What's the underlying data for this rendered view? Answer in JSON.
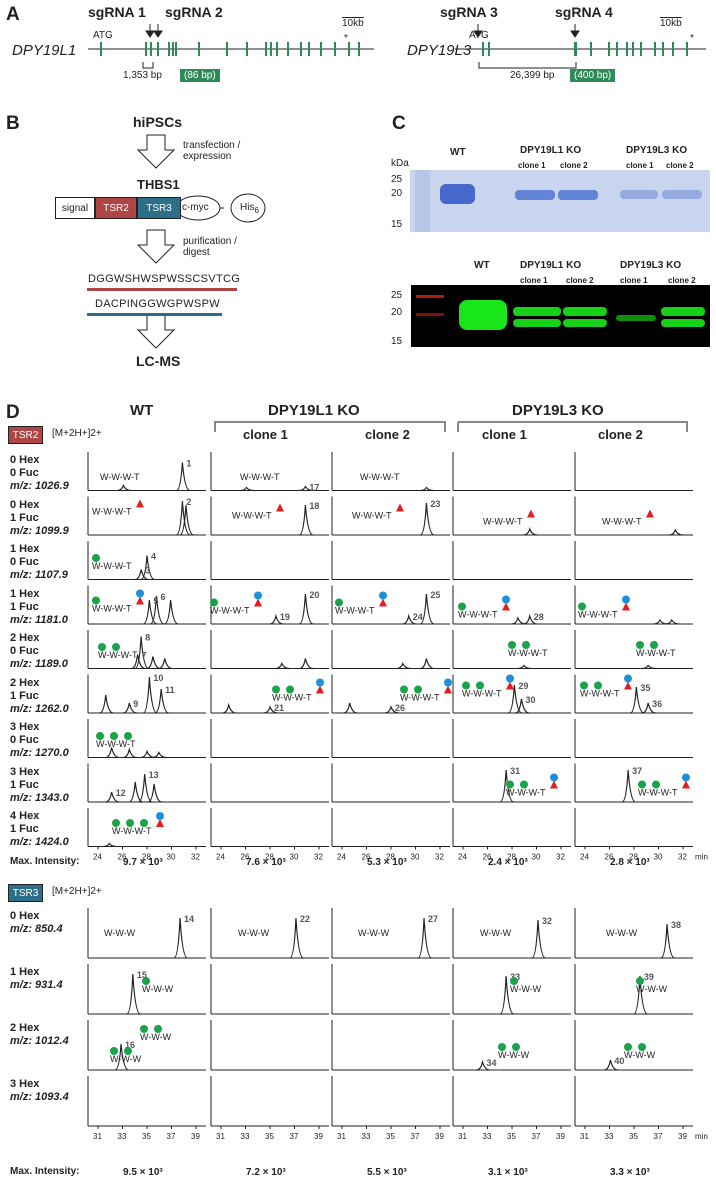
{
  "panelA": {
    "label": "A",
    "left": {
      "gene": "DPY19L1",
      "sg1": "sgRNA 1",
      "sg2": "sgRNA 2",
      "atg": "ATG",
      "scale": "10kb",
      "star": "*",
      "dist": "1,353 bp",
      "box": "(86 bp)"
    },
    "right": {
      "gene": "DPY19L3",
      "sg3": "sgRNA 3",
      "sg4": "sgRNA 4",
      "atg": "ATG",
      "scale": "10kb",
      "star": "*",
      "dist": "26,399 bp",
      "box": "(400 bp)"
    }
  },
  "panelB": {
    "label": "B",
    "hipsc": "hiPSCs",
    "step1": "transfection /\nexpression",
    "thbs1": "THBS1",
    "signal": "signal",
    "tsr2": "TSR2",
    "tsr3": "TSR3",
    "cmyc": "c-myc",
    "his": "His",
    "his_sub": "6",
    "step2": "purification /\ndigest",
    "pep1": "DGGWSHWSPWSSCSVTCG",
    "pep2": "DACPINGGWGPWSPW",
    "lcms": "LC-MS"
  },
  "panelC": {
    "label": "C",
    "kda": "kDa",
    "wt": "WT",
    "l1": "DPY19L1 KO",
    "l3": "DPY19L3 KO",
    "clone1": "clone 1",
    "clone2": "clone 2",
    "markers": [
      "25",
      "20",
      "15"
    ]
  },
  "panelD": {
    "label": "D",
    "headers": {
      "wt": "WT",
      "l1": "DPY19L1 KO",
      "l3": "DPY19L3 KO",
      "clone1": "clone 1",
      "clone2": "clone 2"
    },
    "tsr2": {
      "tag": "TSR2",
      "ion": "[M+2H+]2+",
      "rows": [
        {
          "hex": "0 Hex",
          "fuc": "0 Fuc",
          "mz": "m/z: 1026.9"
        },
        {
          "hex": "0 Hex",
          "fuc": "1 Fuc",
          "mz": "m/z: 1099.9"
        },
        {
          "hex": "1 Hex",
          "fuc": "0 Fuc",
          "mz": "m/z: 1107.9"
        },
        {
          "hex": "1 Hex",
          "fuc": "1 Fuc",
          "mz": "m/z: 1181.0"
        },
        {
          "hex": "2 Hex",
          "fuc": "0 Fuc",
          "mz": "m/z: 1189.0"
        },
        {
          "hex": "2 Hex",
          "fuc": "1 Fuc",
          "mz": "m/z: 1262.0"
        },
        {
          "hex": "3 Hex",
          "fuc": "0 Fuc",
          "mz": "m/z: 1270.0"
        },
        {
          "hex": "3 Hex",
          "fuc": "1 Fuc",
          "mz": "m/z: 1343.0"
        },
        {
          "hex": "4 Hex",
          "fuc": "1 Fuc",
          "mz": "m/z: 1424.0"
        }
      ],
      "ticks": [
        "24",
        "26",
        "28",
        "30",
        "32"
      ],
      "unit": "min",
      "max_label": "Max. Intensity:",
      "max": [
        "9.7 × 10³",
        "7.6 × 10³",
        "5.3 × 10³",
        "2.4 × 10³",
        "2.8 × 10³"
      ]
    },
    "tsr3": {
      "tag": "TSR3",
      "ion": "[M+2H+]2+",
      "rows": [
        {
          "hex": "0 Hex",
          "mz": "m/z: 850.4"
        },
        {
          "hex": "1 Hex",
          "mz": "m/z: 931.4"
        },
        {
          "hex": "2 Hex",
          "mz": "m/z: 1012.4"
        },
        {
          "hex": "3 Hex",
          "mz": "m/z: 1093.4"
        }
      ],
      "ticks": [
        "31",
        "33",
        "35",
        "37",
        "39"
      ],
      "unit": "min",
      "max_label": "Max. Intensity:",
      "max": [
        "9.5 × 10³",
        "7.2 × 10³",
        "5.5 × 10³",
        "3.1 × 10³",
        "3.3 × 10³"
      ]
    },
    "labels": {
      "wwwt": "W-W-W-T",
      "www": "W-W-W"
    },
    "colors": {
      "hex": "#1aa34a",
      "fuc": "#e02020",
      "other": "#1e90d6",
      "exon": "#2e8b57"
    }
  }
}
